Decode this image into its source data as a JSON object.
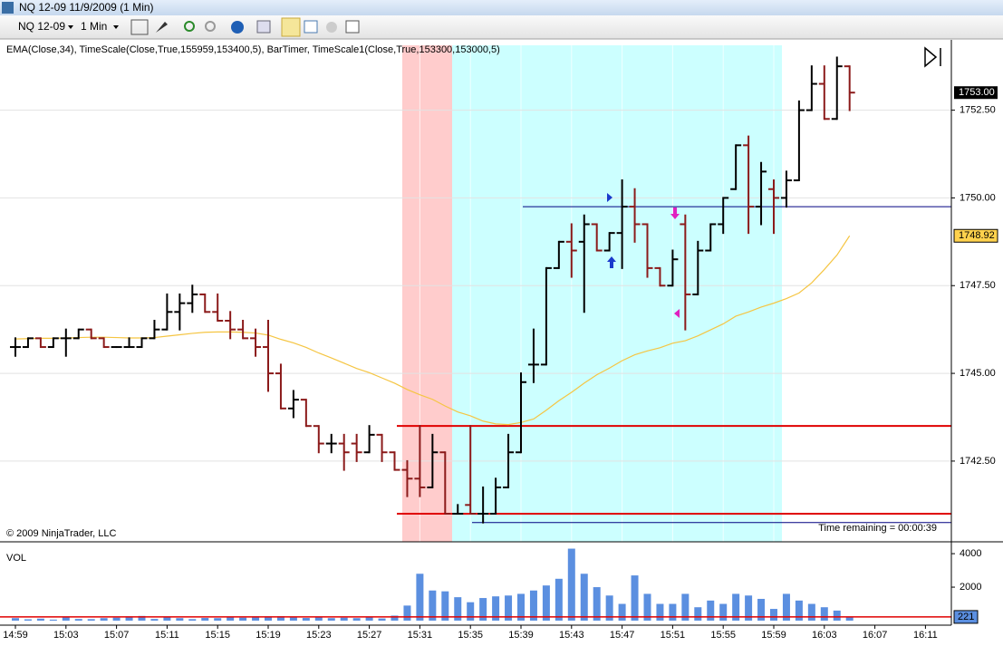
{
  "window_title": "NQ 12-09  11/9/2009 (1 Min)",
  "toolbar": {
    "instrument": "NQ 12-09",
    "interval": "1 Min"
  },
  "chart_data": [
    {
      "type": "ohlc",
      "title": "EMA(Close,34), TimeScale(Close,True,155959,153400,5), BarTimer, TimeScale1(Close,True,153300,153000,5)",
      "copyright": "© 2009 NinjaTrader, LLC",
      "time_remaining": "Time remaining = 00:00:39",
      "up_color": "#000000",
      "down_color": "#8b1a1a",
      "open": [
        1745.75,
        1745.75,
        1746.0,
        1745.75,
        1746.0,
        1746.0,
        1746.25,
        1746.0,
        1745.75,
        1745.75,
        1745.75,
        1746.0,
        1746.25,
        1746.75,
        1747.0,
        1747.25,
        1746.75,
        1746.5,
        1746.25,
        1746.0,
        1745.75,
        1745.0,
        1744.0,
        1744.25,
        1743.5,
        1743.0,
        1743.0,
        1743.0,
        1742.75,
        1743.25,
        1742.75,
        1742.25,
        1742.0,
        1741.75,
        1742.75,
        1741.0,
        1741.25,
        1741.0,
        1741.0,
        1741.75,
        1742.75,
        1745.25,
        1745.25,
        1748.0,
        1748.75,
        1748.75,
        1749.25,
        1748.5,
        1749.0,
        1749.75,
        1749.25,
        1748.0,
        1747.5,
        1749.25,
        1747.25,
        1748.5,
        1749.25,
        1750.25,
        1751.5,
        1749.75,
        1750.25,
        1750.0,
        1750.5,
        1752.5,
        1753.25,
        1752.25,
        1753.75
      ],
      "high": [
        1746.0,
        1746.0,
        1746.0,
        1746.0,
        1746.25,
        1746.25,
        1746.25,
        1746.0,
        1745.75,
        1746.0,
        1746.0,
        1746.5,
        1747.25,
        1747.25,
        1747.5,
        1747.25,
        1747.25,
        1746.75,
        1746.5,
        1746.25,
        1746.5,
        1745.25,
        1744.5,
        1744.25,
        1743.5,
        1743.25,
        1743.25,
        1743.25,
        1743.5,
        1743.25,
        1742.75,
        1742.5,
        1743.5,
        1743.25,
        1742.75,
        1741.25,
        1743.5,
        1741.75,
        1742.0,
        1743.25,
        1745.0,
        1746.25,
        1748.0,
        1748.75,
        1749.25,
        1749.5,
        1749.25,
        1749.0,
        1750.5,
        1750.25,
        1749.25,
        1748.0,
        1748.5,
        1749.5,
        1748.75,
        1749.25,
        1750.0,
        1751.5,
        1751.75,
        1751.0,
        1750.5,
        1750.75,
        1752.75,
        1753.75,
        1753.75,
        1754.0,
        1753.75
      ],
      "low": [
        1745.5,
        1745.75,
        1745.75,
        1745.75,
        1745.5,
        1746.0,
        1746.0,
        1745.75,
        1745.75,
        1745.75,
        1745.75,
        1746.0,
        1746.25,
        1746.25,
        1746.75,
        1746.75,
        1746.5,
        1746.0,
        1746.0,
        1745.5,
        1744.5,
        1744.0,
        1743.75,
        1743.5,
        1742.75,
        1742.75,
        1742.25,
        1742.5,
        1742.75,
        1742.5,
        1742.25,
        1741.5,
        1741.5,
        1741.75,
        1741.0,
        1741.0,
        1741.0,
        1740.75,
        1741.0,
        1741.75,
        1742.75,
        1744.75,
        1745.25,
        1748.0,
        1747.75,
        1746.75,
        1748.5,
        1748.5,
        1748.0,
        1748.75,
        1747.75,
        1747.5,
        1747.5,
        1746.25,
        1747.25,
        1748.5,
        1749.0,
        1750.25,
        1749.0,
        1749.25,
        1749.0,
        1749.75,
        1750.5,
        1752.5,
        1752.25,
        1752.25,
        1752.5
      ],
      "close": [
        1745.75,
        1746.0,
        1745.75,
        1746.0,
        1746.0,
        1746.25,
        1746.0,
        1745.75,
        1745.75,
        1745.75,
        1746.0,
        1746.25,
        1746.75,
        1747.0,
        1747.25,
        1746.75,
        1746.5,
        1746.25,
        1746.0,
        1745.75,
        1745.0,
        1744.0,
        1744.25,
        1743.5,
        1743.0,
        1743.0,
        1742.75,
        1742.75,
        1743.25,
        1742.75,
        1742.25,
        1742.0,
        1741.75,
        1742.75,
        1741.0,
        1741.0,
        1741.0,
        1741.0,
        1741.75,
        1742.75,
        1744.75,
        1745.25,
        1748.0,
        1748.75,
        1748.5,
        1749.25,
        1748.5,
        1749.0,
        1749.75,
        1749.25,
        1748.0,
        1747.5,
        1748.25,
        1747.25,
        1748.5,
        1749.25,
        1750.0,
        1751.5,
        1749.75,
        1750.75,
        1750.0,
        1750.5,
        1752.5,
        1753.25,
        1752.25,
        1753.75,
        1753.0
      ],
      "ema": {
        "color": "#f5c542",
        "values": [
          1745.98,
          1745.99,
          1746.0,
          1746.0,
          1746.01,
          1746.02,
          1746.03,
          1746.03,
          1746.02,
          1746.01,
          1746.01,
          1746.02,
          1746.06,
          1746.1,
          1746.14,
          1746.17,
          1746.18,
          1746.18,
          1746.17,
          1746.15,
          1746.09,
          1745.97,
          1745.87,
          1745.74,
          1745.58,
          1745.44,
          1745.29,
          1745.14,
          1745.02,
          1744.87,
          1744.72,
          1744.54,
          1744.39,
          1744.26,
          1744.07,
          1743.9,
          1743.79,
          1743.64,
          1743.56,
          1743.54,
          1743.6,
          1743.7,
          1743.95,
          1744.22,
          1744.46,
          1744.72,
          1744.96,
          1745.15,
          1745.36,
          1745.53,
          1745.64,
          1745.73,
          1745.86,
          1745.93,
          1746.07,
          1746.24,
          1746.41,
          1746.63,
          1746.75,
          1746.89,
          1747.0,
          1747.13,
          1747.29,
          1747.58,
          1747.96,
          1748.37,
          1748.92
        ]
      },
      "levels": [
        {
          "value": 1743.5,
          "color": "#e00000"
        },
        {
          "value": 1741.0,
          "color": "#e00000"
        },
        {
          "value": 1749.75,
          "color": "#000080"
        },
        {
          "value": 1740.75,
          "color": "#000080"
        }
      ],
      "last_price": {
        "value": 1753,
        "label": "1753.00"
      },
      "ylim": [
        1740.2,
        1754.4
      ],
      "yticks": [
        {
          "value": 1742.5,
          "label": "1742.50"
        },
        {
          "value": 1745,
          "label": "1745.00"
        },
        {
          "value": 1747.5,
          "label": "1747.50"
        },
        {
          "value": 1750,
          "label": "1750.00"
        },
        {
          "value": 1752.5,
          "label": "1752.50"
        }
      ],
      "grid": true
    },
    {
      "type": "bar",
      "title": "VOL",
      "color": "#5b8fe0",
      "values": [
        150,
        80,
        120,
        60,
        200,
        100,
        90,
        150,
        180,
        250,
        280,
        100,
        230,
        150,
        90,
        160,
        150,
        200,
        180,
        250,
        250,
        260,
        190,
        160,
        200,
        150,
        180,
        150,
        220,
        130,
        300,
        900,
        2800,
        1800,
        1750,
        1400,
        1100,
        1350,
        1450,
        1500,
        1600,
        1800,
        2100,
        2500,
        4300,
        2800,
        2000,
        1500,
        1000,
        2700,
        1600,
        1000,
        1000,
        1600,
        800,
        1200,
        1000,
        1600,
        1500,
        1300,
        700,
        1600,
        1200,
        1000,
        800,
        600,
        221
      ],
      "ylim": [
        0,
        4600
      ],
      "yticks": [
        2000,
        4000
      ],
      "xticks": [
        "14:59",
        "15:03",
        "15:07",
        "15:11",
        "15:15",
        "15:19",
        "15:23",
        "15:27",
        "15:31",
        "15:35",
        "15:39",
        "15:43",
        "15:47",
        "15:51",
        "15:55",
        "15:59",
        "16:03",
        "16:07",
        "16:11"
      ]
    }
  ]
}
